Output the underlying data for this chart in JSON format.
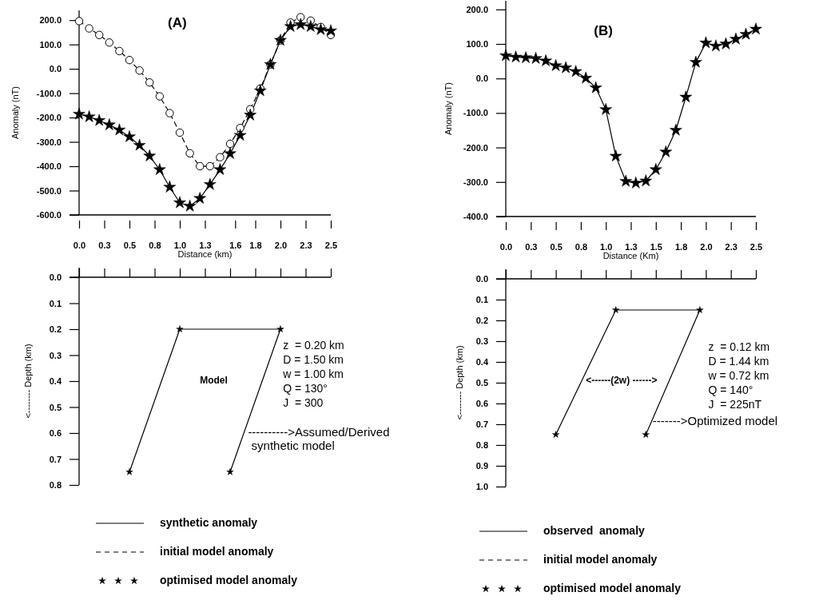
{
  "chart_data": [
    {
      "type": "line",
      "title": "(A)",
      "xlabel": "Distance (km)",
      "ylabel": "Anomaly (nT)",
      "legend": "bottom",
      "x": [
        0,
        0.1,
        0.2,
        0.3,
        0.4,
        0.5,
        0.6,
        0.7,
        0.8,
        0.9,
        1.0,
        1.1,
        1.2,
        1.3,
        1.4,
        1.5,
        1.6,
        1.7,
        1.8,
        1.9,
        2.0,
        2.1,
        2.2,
        2.3,
        2.4,
        2.5
      ],
      "xlim": [
        0,
        2.5
      ],
      "xticks": [
        {
          "value": 0,
          "label": "0.0"
        },
        {
          "value": 0.25,
          "label": "0.3"
        },
        {
          "value": 0.5,
          "label": "0.5"
        },
        {
          "value": 0.75,
          "label": "0.8"
        },
        {
          "value": 1,
          "label": "1.0"
        },
        {
          "value": 1.25,
          "label": "1.3"
        },
        {
          "value": 1.55,
          "label": "1.6"
        },
        {
          "value": 1.75,
          "label": "1.8"
        },
        {
          "value": 2,
          "label": "2.0"
        },
        {
          "value": 2.25,
          "label": "2.3"
        },
        {
          "value": 2.5,
          "label": "2.5"
        }
      ],
      "ylim": [
        -600,
        240
      ],
      "yticks": [
        {
          "value": -600,
          "label": "-600.0"
        },
        {
          "value": -500,
          "label": "-500.0"
        },
        {
          "value": -400,
          "label": "-400.0"
        },
        {
          "value": -300,
          "label": "-300.0"
        },
        {
          "value": -200,
          "label": "-200.0"
        },
        {
          "value": -100,
          "label": "-100.0"
        },
        {
          "value": 0,
          "label": "0.0"
        },
        {
          "value": 100,
          "label": "100.0"
        },
        {
          "value": 200,
          "label": "200.0"
        }
      ],
      "series": [
        {
          "name": "synthetic anomaly",
          "type": "line",
          "color": "#000000",
          "line_style": "solid",
          "marker": "none",
          "values": [
            -186,
            -197,
            -212,
            -230,
            -251,
            -279,
            -314,
            -358,
            -414,
            -486,
            -550,
            -564,
            -532,
            -475,
            -414,
            -348,
            -273,
            -190,
            -90,
            18,
            117,
            174,
            182,
            174,
            161,
            156
          ]
        },
        {
          "name": "initial model anomaly",
          "type": "line",
          "color": "#000000",
          "line_style": "dashed",
          "marker": "circle",
          "values": [
            196,
            166,
            139,
            108,
            73,
            36,
            -7,
            -56,
            -113,
            -182,
            -262,
            -347,
            -400,
            -400,
            -363,
            -308,
            -243,
            -166,
            -81,
            18,
            117,
            190,
            212,
            198,
            172,
            139
          ]
        },
        {
          "name": "optimised model anomaly",
          "type": "scatter",
          "color": "#000000",
          "marker": "star",
          "values": [
            -186,
            -197,
            -212,
            -230,
            -251,
            -279,
            -314,
            -358,
            -414,
            -486,
            -550,
            -564,
            -532,
            -475,
            -414,
            -348,
            -273,
            -190,
            -90,
            18,
            117,
            174,
            182,
            174,
            161,
            156
          ]
        }
      ]
    },
    {
      "type": "line",
      "title": "(B)",
      "xlabel": "Distance (Km)",
      "ylabel": "Anomaly (nT)",
      "legend": "bottom",
      "x": [
        0,
        0.1,
        0.2,
        0.3,
        0.4,
        0.5,
        0.6,
        0.7,
        0.8,
        0.9,
        1.0,
        1.1,
        1.2,
        1.3,
        1.4,
        1.5,
        1.6,
        1.7,
        1.8,
        1.9,
        2.0,
        2.1,
        2.2,
        2.3,
        2.4,
        2.5
      ],
      "xlim": [
        0,
        2.5
      ],
      "xticks": [
        {
          "value": 0,
          "label": "0.0"
        },
        {
          "value": 0.25,
          "label": "0.3"
        },
        {
          "value": 0.5,
          "label": "0.5"
        },
        {
          "value": 0.75,
          "label": "0.8"
        },
        {
          "value": 1,
          "label": "1.0"
        },
        {
          "value": 1.25,
          "label": "1.3"
        },
        {
          "value": 1.5,
          "label": "1.5"
        },
        {
          "value": 1.75,
          "label": "1.8"
        },
        {
          "value": 2,
          "label": "2.0"
        },
        {
          "value": 2.25,
          "label": "2.3"
        },
        {
          "value": 2.5,
          "label": "2.5"
        }
      ],
      "ylim": [
        -400,
        225
      ],
      "yticks": [
        {
          "value": -400,
          "label": "-400.0"
        },
        {
          "value": -300,
          "label": "-300.0"
        },
        {
          "value": -200,
          "label": "-200.0"
        },
        {
          "value": -100,
          "label": "-100.0"
        },
        {
          "value": 0,
          "label": "0.0"
        },
        {
          "value": 100,
          "label": "100.0"
        },
        {
          "value": 200,
          "label": "200.0"
        }
      ],
      "series": [
        {
          "name": "observed  anomaly",
          "type": "line",
          "color": "#000000",
          "line_style": "solid",
          "values": [
            66,
            62,
            60,
            58,
            51,
            37,
            31,
            20,
            1,
            -27,
            -90,
            -225,
            -298,
            -303,
            -297,
            -264,
            -213,
            -150,
            -54,
            47,
            103,
            94,
            100,
            114,
            128,
            143
          ]
        },
        {
          "name": "initial model anomaly",
          "type": "line",
          "color": "#000000",
          "line_style": "dashed",
          "marker": "none",
          "values": [
            null,
            null,
            null,
            null,
            null,
            null,
            null,
            null,
            null,
            null,
            null,
            null,
            null,
            null,
            null,
            null,
            null,
            null,
            null,
            null,
            null,
            null,
            null,
            null,
            null,
            null
          ]
        },
        {
          "name": "optimised model anomaly",
          "type": "scatter",
          "color": "#000000",
          "marker": "star",
          "values": [
            66,
            62,
            60,
            58,
            51,
            37,
            31,
            20,
            1,
            -27,
            -90,
            -225,
            -298,
            -303,
            -297,
            -264,
            -213,
            -150,
            -54,
            47,
            103,
            94,
            100,
            114,
            128,
            143
          ]
        }
      ]
    },
    {
      "type": "line",
      "ylabel": "<-------- Depth (km)",
      "tick_labels": "y",
      "xlim": [
        0,
        2.5
      ],
      "xticks": [
        {
          "value": 0,
          "label": null
        },
        {
          "value": 0.25,
          "label": null
        },
        {
          "value": 0.5,
          "label": null
        },
        {
          "value": 0.75,
          "label": null
        },
        {
          "value": 1,
          "label": null
        },
        {
          "value": 1.25,
          "label": null
        },
        {
          "value": 1.5,
          "label": null
        },
        {
          "value": 1.75,
          "label": null
        },
        {
          "value": 2,
          "label": null
        },
        {
          "value": 2.25,
          "label": null
        },
        {
          "value": 2.5,
          "label": null
        }
      ],
      "ylim": [
        0.8,
        0
      ],
      "yticks": [
        {
          "value": 0,
          "label": "0.0"
        },
        {
          "value": 0.1,
          "label": "0.1"
        },
        {
          "value": 0.2,
          "label": "0.2"
        },
        {
          "value": 0.3,
          "label": "0.3"
        },
        {
          "value": 0.4,
          "label": "0.4"
        },
        {
          "value": 0.5,
          "label": "0.5"
        },
        {
          "value": 0.6,
          "label": "0.6"
        },
        {
          "value": 0.7,
          "label": "0.7"
        },
        {
          "value": 0.8,
          "label": "0.8"
        }
      ],
      "series": [
        {
          "type": "line",
          "color": "#000000",
          "line_style": "solid",
          "marker": "star",
          "x": [
            0.5,
            1.0,
            2.0,
            1.5
          ],
          "values": [
            0.75,
            0.2,
            0.2,
            0.75
          ]
        }
      ],
      "annotations": [
        "Model",
        "z  = 0.20 km",
        "D = 1.50 km",
        "w = 1.00 km",
        "Q = 130°",
        "J  = 300",
        {
          "text": "---------->Assumed/Derived\n synthetic model",
          "x": 1.63,
          "y": 0.6
        }
      ]
    },
    {
      "type": "line",
      "ylabel": "<-------- Depth (km)",
      "tick_labels": "y",
      "xlim": [
        0,
        2.5
      ],
      "xticks": [
        {
          "value": 0,
          "label": null
        },
        {
          "value": 0.25,
          "label": null
        },
        {
          "value": 0.5,
          "label": null
        },
        {
          "value": 0.75,
          "label": null
        },
        {
          "value": 1,
          "label": null
        },
        {
          "value": 1.25,
          "label": null
        },
        {
          "value": 1.5,
          "label": null
        },
        {
          "value": 1.75,
          "label": null
        },
        {
          "value": 2,
          "label": null
        },
        {
          "value": 2.25,
          "label": null
        },
        {
          "value": 2.5,
          "label": null
        }
      ],
      "ylim": [
        1.0,
        0
      ],
      "yticks": [
        {
          "value": 0,
          "label": "0.0"
        },
        {
          "value": 0.1,
          "label": "0.1"
        },
        {
          "value": 0.2,
          "label": "0.2"
        },
        {
          "value": 0.3,
          "label": "0.3"
        },
        {
          "value": 0.4,
          "label": "0.4"
        },
        {
          "value": 0.5,
          "label": "0.5"
        },
        {
          "value": 0.6,
          "label": "0.6"
        },
        {
          "value": 0.7,
          "label": "0.7"
        },
        {
          "value": 0.8,
          "label": "0.8"
        },
        {
          "value": 0.9,
          "label": "0.9"
        },
        {
          "value": 1.0,
          "label": "1.0"
        }
      ],
      "series": [
        {
          "type": "line",
          "color": "#000000",
          "line_style": "solid",
          "marker": "star",
          "x": [
            0.5,
            1.1,
            1.94,
            1.4
          ],
          "values": [
            0.75,
            0.15,
            0.15,
            0.75
          ]
        }
      ],
      "annotations": [
        "<------(2w) ------>",
        "z  = 0.12 km",
        "D = 1.44 km",
        "w = 0.72 km",
        "Q = 140°",
        "J  = 225nT",
        {
          "text": "------->Optimized model",
          "x": 1.42,
          "y": 0.69
        }
      ]
    }
  ]
}
